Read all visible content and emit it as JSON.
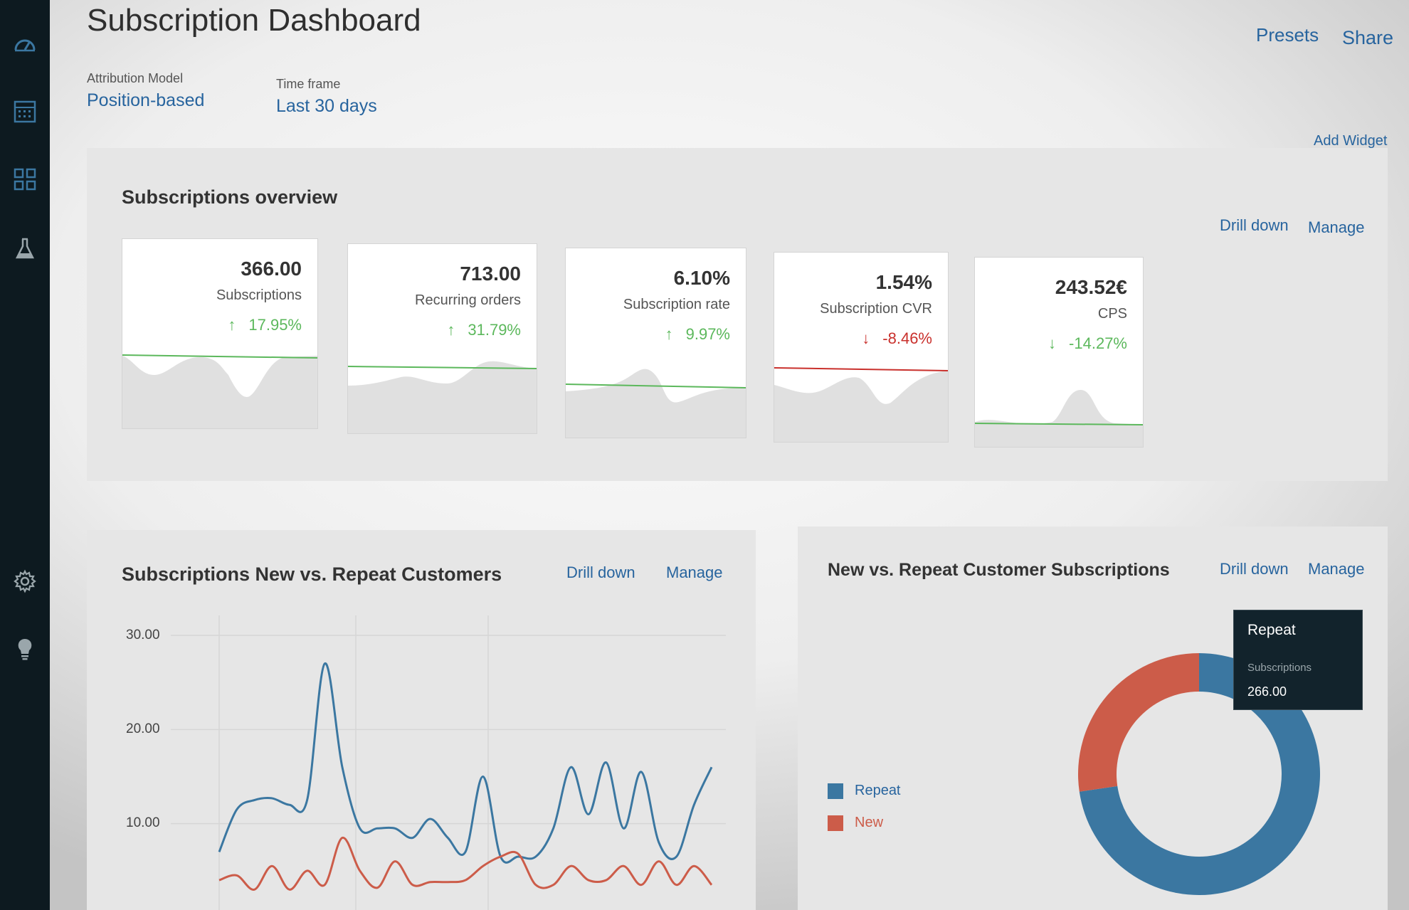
{
  "sidebar": {
    "items": [
      {
        "icon": "dashboard-gauge-icon"
      },
      {
        "icon": "table-grid-icon"
      },
      {
        "icon": "widgets-grid-icon"
      },
      {
        "icon": "flask-icon"
      },
      {
        "icon": "settings-gear-icon"
      },
      {
        "icon": "lightbulb-icon"
      }
    ]
  },
  "header": {
    "title": "Subscription Dashboard",
    "presets_label": "Presets",
    "share_label": "Share"
  },
  "filters": {
    "attribution_label": "Attribution Model",
    "attribution_value": "Position-based",
    "timeframe_label": "Time frame",
    "timeframe_value": "Last 30 days"
  },
  "add_widget_label": "Add Widget",
  "overview": {
    "title": "Subscriptions overview",
    "drill_down": "Drill down",
    "manage": "Manage",
    "kpis": [
      {
        "value": "366.00",
        "label": "Subscriptions",
        "change": "17.95%",
        "direction": "up",
        "color": "#5cb85c"
      },
      {
        "value": "713.00",
        "label": "Recurring orders",
        "change": "31.79%",
        "direction": "up",
        "color": "#5cb85c"
      },
      {
        "value": "6.10%",
        "label": "Subscription rate",
        "change": "9.97%",
        "direction": "up",
        "color": "#5cb85c"
      },
      {
        "value": "1.54%",
        "label": "Subscription CVR",
        "change": "-8.46%",
        "direction": "down",
        "color": "#c9302c"
      },
      {
        "value": "243.52€",
        "label": "CPS",
        "change": "-14.27%",
        "direction": "down",
        "color": "#5cb85c"
      }
    ]
  },
  "line_panel": {
    "title": "Subscriptions New vs. Repeat Customers",
    "drill_down": "Drill down",
    "manage": "Manage"
  },
  "donut_panel": {
    "title": "New vs. Repeat Customer Subscriptions",
    "drill_down": "Drill down",
    "manage": "Manage",
    "tooltip": {
      "title": "Repeat",
      "label": "Subscriptions",
      "value": "266.00"
    }
  },
  "chart_data": [
    {
      "type": "line",
      "title": "Subscriptions New vs. Repeat Customers",
      "ylim": [
        0,
        30
      ],
      "y_ticks": [
        "30.00",
        "20.00",
        "10.00"
      ],
      "grid": true,
      "series": [
        {
          "name": "Repeat",
          "color": "#3b77a1",
          "values": [
            7,
            11.5,
            12.5,
            12.7,
            12,
            12.5,
            27,
            16,
            9.5,
            9.5,
            9.5,
            8.5,
            10.5,
            8.5,
            7,
            15,
            6.5,
            6.5,
            6.5,
            9.5,
            16,
            11,
            16.5,
            9.5,
            15.5,
            8,
            6.5,
            12,
            16
          ]
        },
        {
          "name": "New",
          "color": "#cc5c49",
          "values": [
            4,
            4.5,
            3,
            5.5,
            3,
            5,
            3.5,
            8.5,
            5,
            3.2,
            6,
            3.5,
            3.8,
            3.8,
            4,
            5.5,
            6.5,
            6.8,
            3.5,
            3.5,
            5.5,
            4,
            4,
            5.5,
            3.5,
            6,
            3.5,
            5.5,
            3.5
          ]
        }
      ]
    },
    {
      "type": "pie",
      "title": "New vs. Repeat Customer Subscriptions",
      "series": [
        {
          "name": "Repeat",
          "value": 266,
          "color": "#3b77a1"
        },
        {
          "name": "New",
          "value": 100,
          "color": "#cc5c49"
        }
      ]
    }
  ]
}
